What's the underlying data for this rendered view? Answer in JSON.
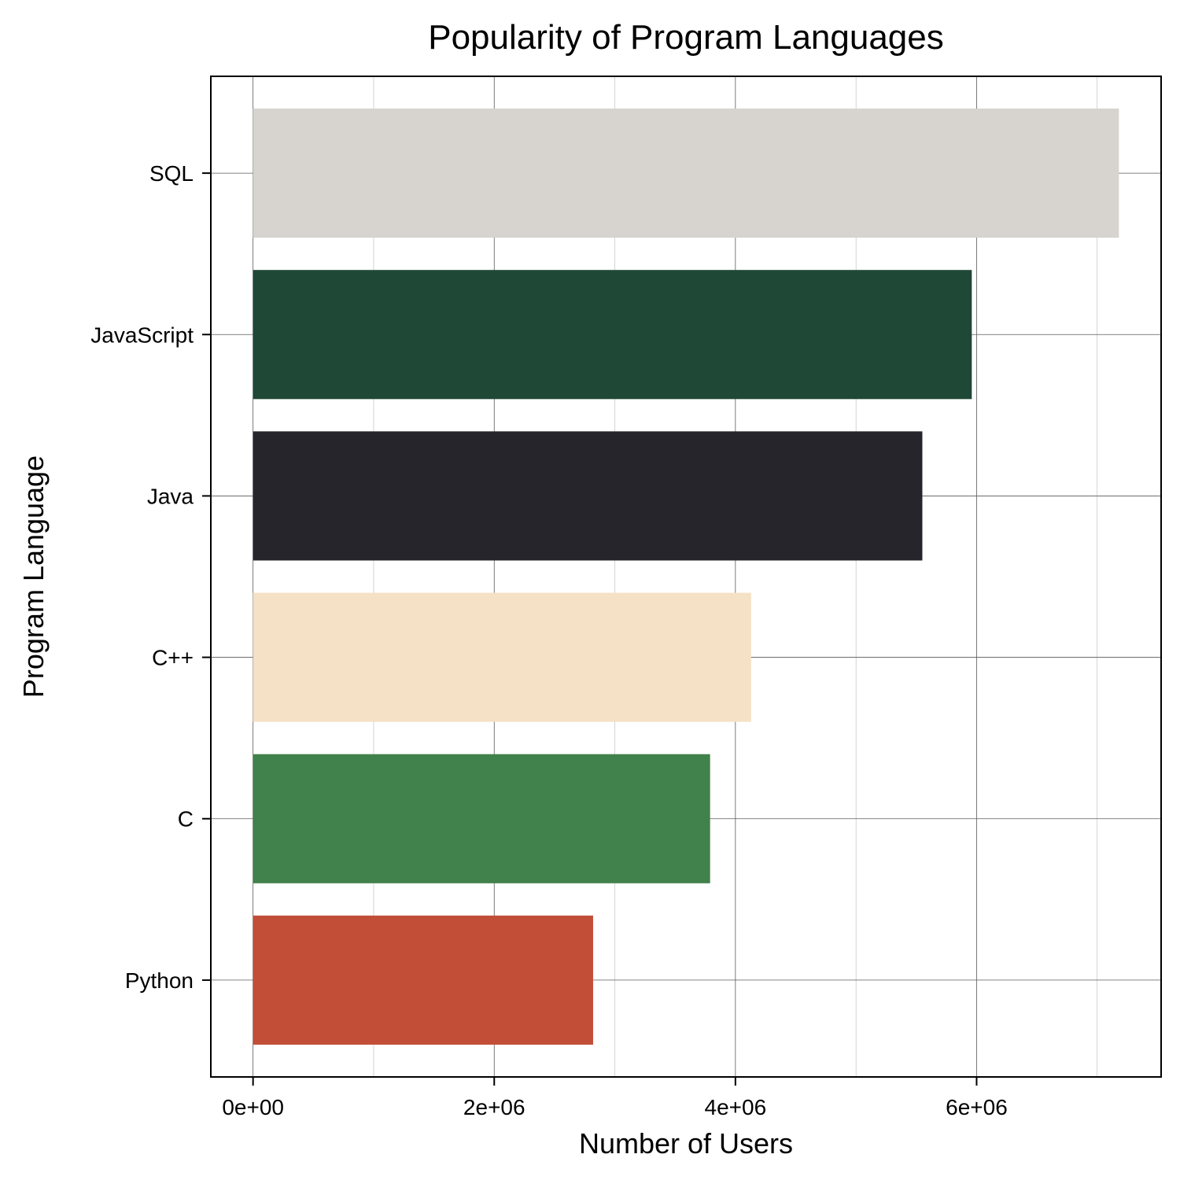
{
  "chart_data": {
    "type": "bar",
    "orientation": "horizontal",
    "title": "Popularity of Program Languages",
    "xlabel": "Number of Users",
    "ylabel": "Program Language",
    "categories": [
      "Python",
      "C",
      "C++",
      "Java",
      "JavaScript",
      "SQL"
    ],
    "values": [
      2820000,
      3790000,
      4130000,
      5550000,
      5960000,
      7180000
    ],
    "colors": [
      "#c24e37",
      "#41814b",
      "#f4e1c6",
      "#25252b",
      "#1f4837",
      "#d7d3cf"
    ],
    "xlim": [
      -350000,
      7530000
    ],
    "x_ticks": [
      {
        "value": 0,
        "label": "0e+00"
      },
      {
        "value": 2000000,
        "label": "2e+06"
      },
      {
        "value": 4000000,
        "label": "4e+06"
      },
      {
        "value": 6000000,
        "label": "6e+06"
      }
    ],
    "x_minor_ticks": [
      1000000,
      3000000,
      5000000,
      7000000
    ],
    "grid": true,
    "legend": "none"
  }
}
